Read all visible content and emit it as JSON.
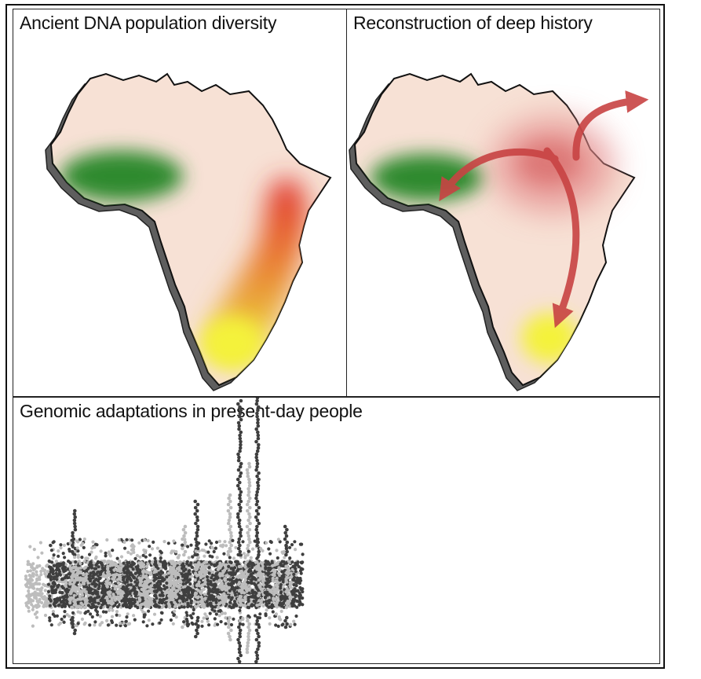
{
  "panels": {
    "diversity": {
      "title": "Ancient DNA population diversity"
    },
    "history": {
      "title": "Reconstruction of deep history"
    },
    "genomic": {
      "title": "Genomic adaptations in present-day people"
    }
  },
  "colors": {
    "land": "#f7e1d5",
    "coast_shadow": "#6a6a6a",
    "outline": "#111111",
    "west_population": "#2f8a2f",
    "east_population": "#dd3a3a",
    "south_population": "#f4f23a",
    "migration_arrow": "#c84343",
    "chrom_dark": "#3f3f3f",
    "chrom_light": "#bdbdbd"
  },
  "icons": [
    "africa-map-icon",
    "migration-arrow-icon"
  ]
}
